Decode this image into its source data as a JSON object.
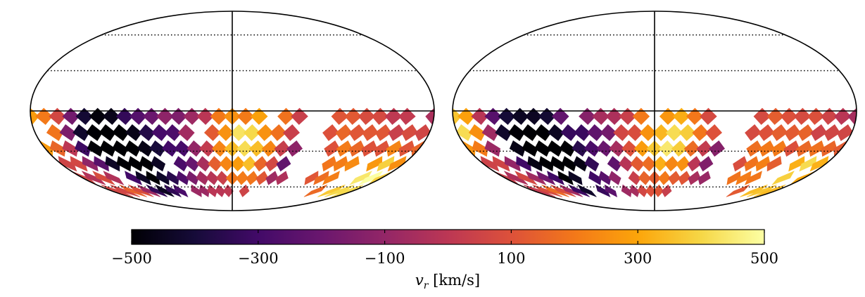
{
  "chart_data": {
    "type": "heatmap",
    "projection": "mollweide",
    "panels": [
      {
        "name": "left-map",
        "grid": "dotted",
        "seed": 11
      },
      {
        "name": "right-map",
        "grid": "dotted",
        "seed": 29
      }
    ],
    "colorbar": {
      "colormap": "inferno",
      "vmin": -500,
      "vmax": 500,
      "tick_values": [
        -500,
        -300,
        -100,
        100,
        300,
        500
      ],
      "tick_labels": [
        "−500",
        "−300",
        "−100",
        "100",
        "300",
        "500"
      ],
      "label_main": "v",
      "label_sub": "r",
      "label_unit": " [km/s]"
    }
  }
}
